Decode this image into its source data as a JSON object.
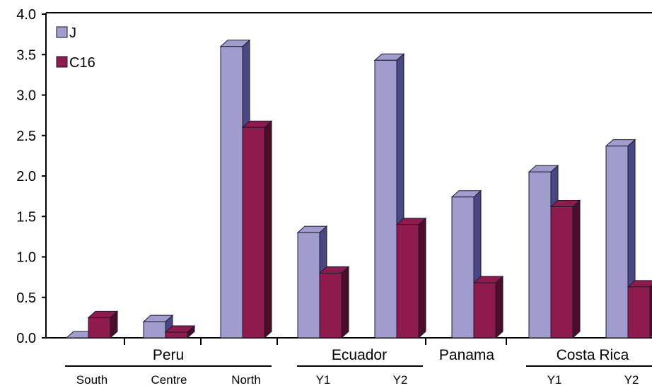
{
  "chart_data": {
    "type": "bar",
    "ylim": [
      0,
      4
    ],
    "y_ticks": [
      "0.0",
      "0.5",
      "1.0",
      "1.5",
      "2.0",
      "2.5",
      "3.0",
      "3.5",
      "4.0"
    ],
    "legend_placement": "top-left",
    "categories": [
      {
        "group": "Peru",
        "label": "South"
      },
      {
        "group": "Peru",
        "label": "Centre"
      },
      {
        "group": "Peru",
        "label": "North"
      },
      {
        "group": "Ecuador",
        "label": "Y1"
      },
      {
        "group": "Ecuador",
        "label": "Y2"
      },
      {
        "group": "Panama",
        "label": ""
      },
      {
        "group": "Costa Rica",
        "label": "Y1"
      },
      {
        "group": "Costa Rica",
        "label": "Y2"
      }
    ],
    "groups": [
      "Peru",
      "Ecuador",
      "Panama",
      "Costa Rica"
    ],
    "series": [
      {
        "name": "J",
        "color": "#a09ccd",
        "side": "#4a4785",
        "values": [
          0.0,
          0.2,
          3.6,
          1.3,
          3.43,
          1.74,
          2.05,
          2.37
        ]
      },
      {
        "name": "C16",
        "color": "#8e1a4e",
        "side": "#4d0c2a",
        "values": [
          0.25,
          0.07,
          2.6,
          0.8,
          1.4,
          0.68,
          1.62,
          0.63
        ]
      }
    ]
  }
}
